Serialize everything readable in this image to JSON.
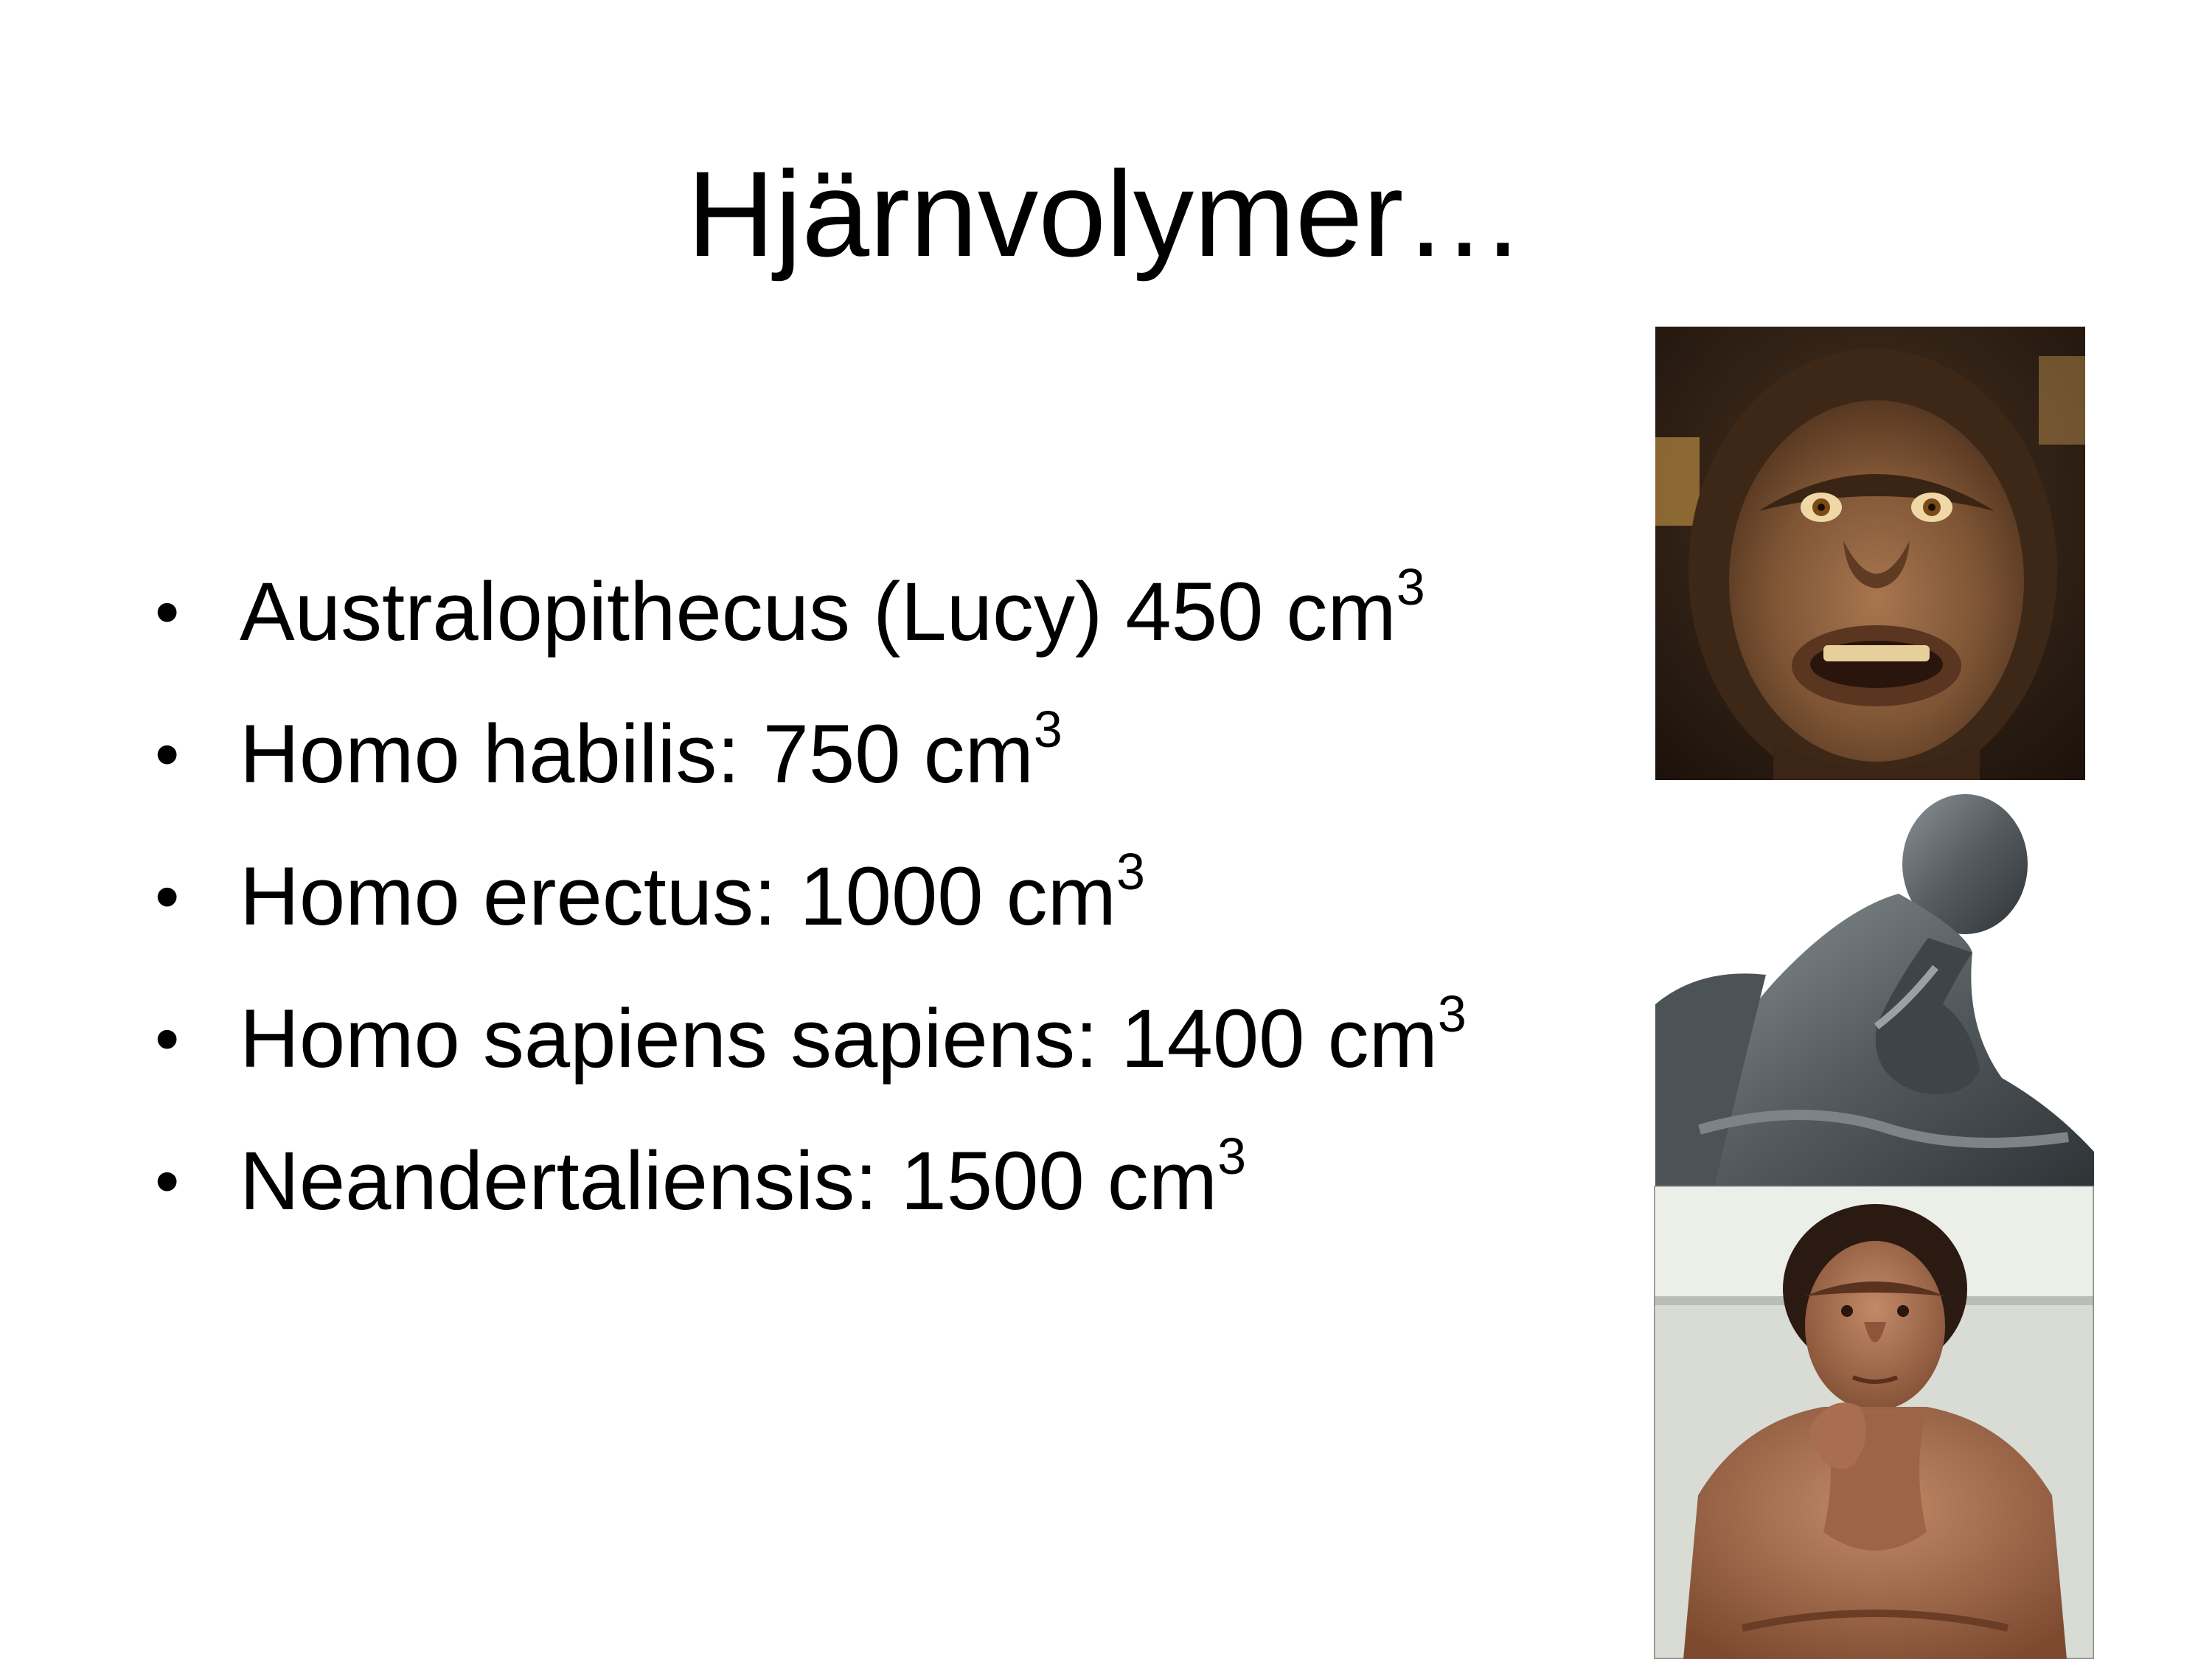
{
  "slide": {
    "title": "Hjärnvolymer…",
    "bullet_glyph": "•",
    "bullets": [
      {
        "text": "Australopithecus (Lucy) 450 cm",
        "superscript": "3"
      },
      {
        "text": "Homo habilis: 750 cm",
        "superscript": "3"
      },
      {
        "text": "Homo erectus: 1000 cm",
        "superscript": "3"
      },
      {
        "text": "Homo sapiens sapiens: 1400 cm",
        "superscript": "3"
      },
      {
        "text": "Neandertaliensis: 1500 cm",
        "superscript": "3"
      }
    ]
  },
  "images": [
    {
      "name": "australopithecus-lucy-reconstruction-photo",
      "dominant_color": "#6b4a2f"
    },
    {
      "name": "thinker-statue-photo",
      "dominant_color": "#5e6568"
    },
    {
      "name": "neanderthal-reconstruction-photo",
      "dominant_color": "#9a6448"
    }
  ]
}
